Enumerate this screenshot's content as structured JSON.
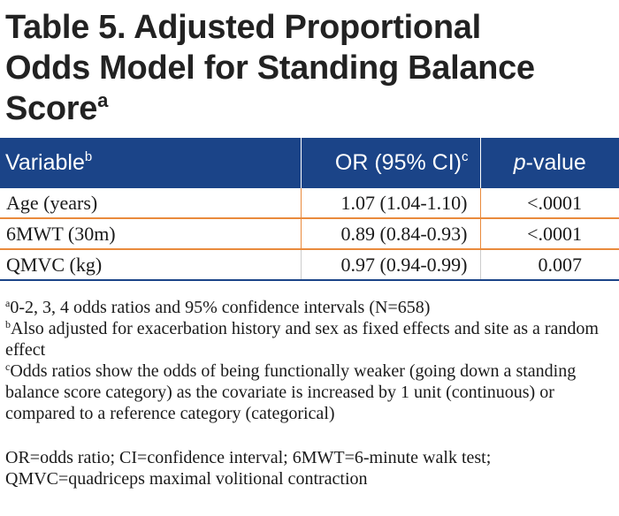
{
  "title": {
    "line1": "Table 5. Adjusted Proportional",
    "line2": "Odds Model for Standing Balance",
    "line3": "Score",
    "sup": "a"
  },
  "table": {
    "headers": {
      "variable": "Variable",
      "variable_sup": "b",
      "or": "OR (95% CI)",
      "or_sup": "c",
      "p_italic": "p",
      "p_rest": "-value"
    },
    "rows": [
      {
        "variable": "Age (years)",
        "or": "1.07 (1.04-1.10)",
        "p": "<.0001"
      },
      {
        "variable": "6MWT (30m)",
        "or": "0.89 (0.84-0.93)",
        "p": "<.0001"
      },
      {
        "variable": "QMVC (kg)",
        "or": "0.97 (0.94-0.99)",
        "p": "0.007"
      }
    ]
  },
  "footnotes": [
    {
      "mark": "a",
      "text": "0-2, 3, 4 odds ratios and 95% confidence intervals (N=658)"
    },
    {
      "mark": "b",
      "text": "Also adjusted for exacerbation history and sex as fixed effects and site as a random effect"
    },
    {
      "mark": "c",
      "text": "Odds ratios show the odds of being functionally weaker (going down a standing balance score category) as the covariate is increased by 1 unit (continuous) or compared to a reference category (categorical)"
    }
  ],
  "abbreviations": "OR=odds ratio; CI=confidence interval; 6MWT=6-minute walk test; QMVC=quadriceps maximal volitional contraction",
  "colors": {
    "header_bg": "#1b4488",
    "row_rule": "#e98a3c"
  }
}
